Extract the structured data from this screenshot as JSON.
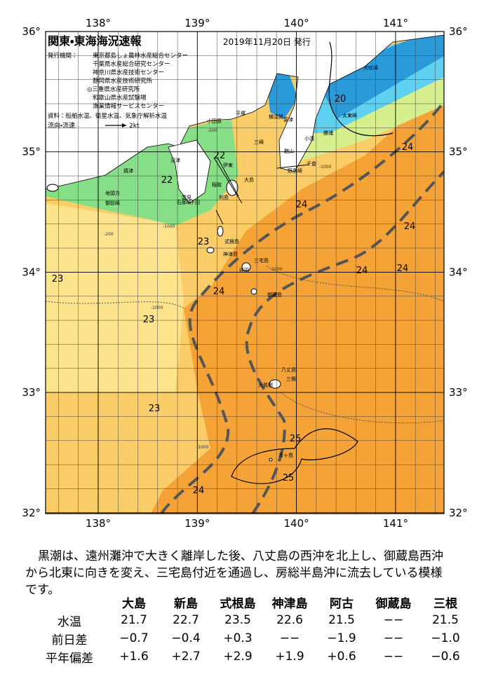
{
  "header": {
    "title": "関東・東海海況速報",
    "date": "2019年11月20日 発行",
    "publisher_label": "発行機関：",
    "publishers": [
      "東京都島しょ農林水産総合センター",
      "千葉県水産総合研究センター",
      "神奈川県水産技術センター",
      "静岡県水産技術研究所",
      "◎三重県水産研究所",
      "和歌山県水産試験場",
      "漁業情報サービスセンター"
    ],
    "sources": "資料：船舶水温、衛星水温、気象庁解析水温",
    "legend_label": "流向・流速",
    "legend_speed": "2kt"
  },
  "map": {
    "lon_ticks": [
      {
        "value": 138,
        "label": "138°"
      },
      {
        "value": 139,
        "label": "139°"
      },
      {
        "value": 140,
        "label": "140°"
      },
      {
        "value": 141,
        "label": "141°"
      }
    ],
    "lat_ticks": [
      {
        "value": 36,
        "label": "36°"
      },
      {
        "value": 35,
        "label": "35°"
      },
      {
        "value": 34,
        "label": "34°"
      },
      {
        "value": 33,
        "label": "33°"
      },
      {
        "value": 32,
        "label": "32°"
      }
    ],
    "contour_labels": [
      "20",
      "24",
      "22",
      "22",
      "24",
      "24",
      "23",
      "24",
      "24",
      "23",
      "24",
      "23",
      "23",
      "25",
      "25",
      "24"
    ],
    "place_names": [
      "犬吠埼",
      "太東崎",
      "勝浦",
      "小湊",
      "千倉",
      "野島崎",
      "館山",
      "富津",
      "横須賀",
      "平塚",
      "小田原",
      "三崎",
      "伊東",
      "沼津",
      "焼津",
      "地頭方",
      "御前崎",
      "稲取",
      "大島",
      "雲見",
      "下田",
      "石廊崎",
      "利島",
      "式根島",
      "神津島",
      "三宅島",
      "坪田",
      "御蔵島",
      "八丈島",
      "三根",
      "大賀郷",
      "青ヶ島"
    ],
    "depth_labels": [
      "-1000",
      "-200",
      "-200",
      "-1000",
      "-1000",
      "-1000",
      "-1000"
    ]
  },
  "summary": [
    "黒潮は、遠州灘沖で大きく離岸した後、八丈島の西沖を北上し、御蔵島西沖",
    "から北東に向きを変え、三宅島付近を通過し、房総半島沖に流去している模様",
    "です。"
  ],
  "table": {
    "columns": [
      "大島",
      "新島",
      "式根島",
      "神津島",
      "阿古",
      "御蔵島",
      "三根"
    ],
    "rows": [
      {
        "label": "水温",
        "values": [
          "21.7",
          "22.7",
          "23.5",
          "22.6",
          "21.5",
          "−−",
          "21.5"
        ]
      },
      {
        "label": "前日差",
        "values": [
          "−0.7",
          "−0.4",
          "+0.3",
          "−−",
          "−1.9",
          "−−",
          "−1.0"
        ]
      },
      {
        "label": "平年偏差",
        "values": [
          "+1.6",
          "+2.7",
          "+2.9",
          "+1.9",
          "+0.6",
          "−−",
          "−0.6"
        ]
      }
    ]
  }
}
